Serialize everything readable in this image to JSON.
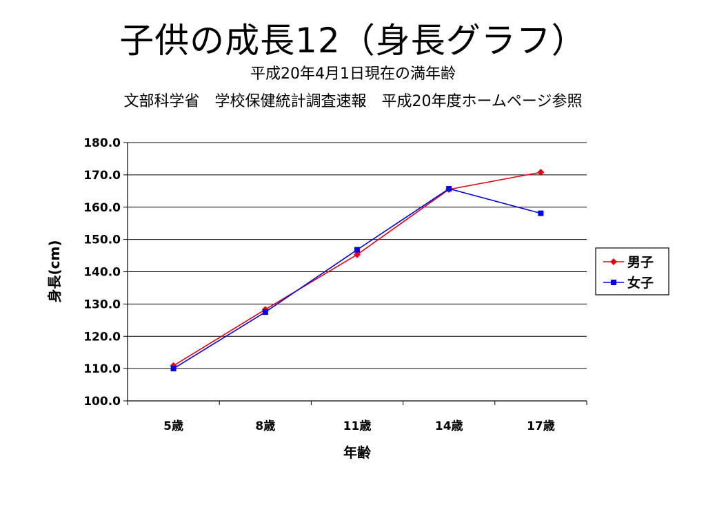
{
  "chart_data": {
    "type": "line",
    "title": "子供の成長12（身長グラフ）",
    "subtitle": "平成20年4月1日現在の満年齢",
    "subtitle2": "文部科学省　学校保健統計調査速報　平成20年度ホームページ参照",
    "xlabel": "年齢",
    "ylabel": "身長(cm)",
    "categories": [
      "5歳",
      "8歳",
      "11歳",
      "14歳",
      "17歳"
    ],
    "ylim": [
      100,
      180
    ],
    "yticks": [
      "100.0",
      "110.0",
      "120.0",
      "130.0",
      "140.0",
      "150.0",
      "160.0",
      "170.0",
      "180.0"
    ],
    "grid": true,
    "legend_position": "right",
    "series": [
      {
        "name": "男子",
        "values": [
          110.9,
          128.3,
          145.3,
          165.5,
          170.8
        ],
        "color": "#e8000d",
        "marker": "diamond"
      },
      {
        "name": "女子",
        "values": [
          110.0,
          127.5,
          146.8,
          165.7,
          158.1
        ],
        "color": "#0000e0",
        "marker": "square"
      }
    ]
  }
}
